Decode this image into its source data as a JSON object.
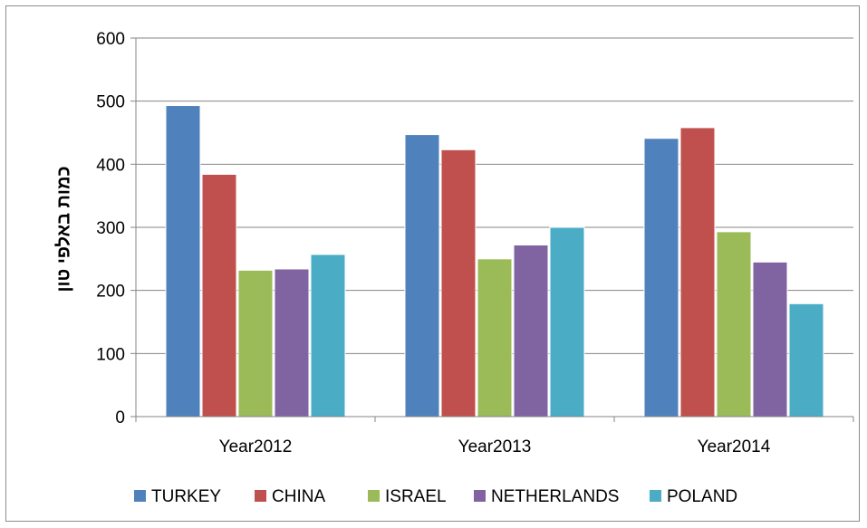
{
  "chart_data": {
    "type": "bar",
    "title": "",
    "xlabel": "",
    "ylabel": "כמות באלפי טון",
    "ylim": [
      0,
      600
    ],
    "yticks": [
      0,
      100,
      200,
      300,
      400,
      500,
      600
    ],
    "grid": true,
    "legend_position": "bottom",
    "categories": [
      "Year2012",
      "Year2013",
      "Year2014"
    ],
    "series": [
      {
        "name": "TURKEY",
        "color": "#4F81BD",
        "values": [
          493,
          447,
          441
        ]
      },
      {
        "name": "CHINA",
        "color": "#C0504D",
        "values": [
          384,
          423,
          458
        ]
      },
      {
        "name": "ISRAEL",
        "color": "#9BBB59",
        "values": [
          232,
          250,
          293
        ]
      },
      {
        "name": "NETHERLANDS",
        "color": "#8064A2",
        "values": [
          234,
          272,
          245
        ]
      },
      {
        "name": "POLAND",
        "color": "#4BACC6",
        "values": [
          257,
          300,
          179
        ]
      }
    ]
  }
}
